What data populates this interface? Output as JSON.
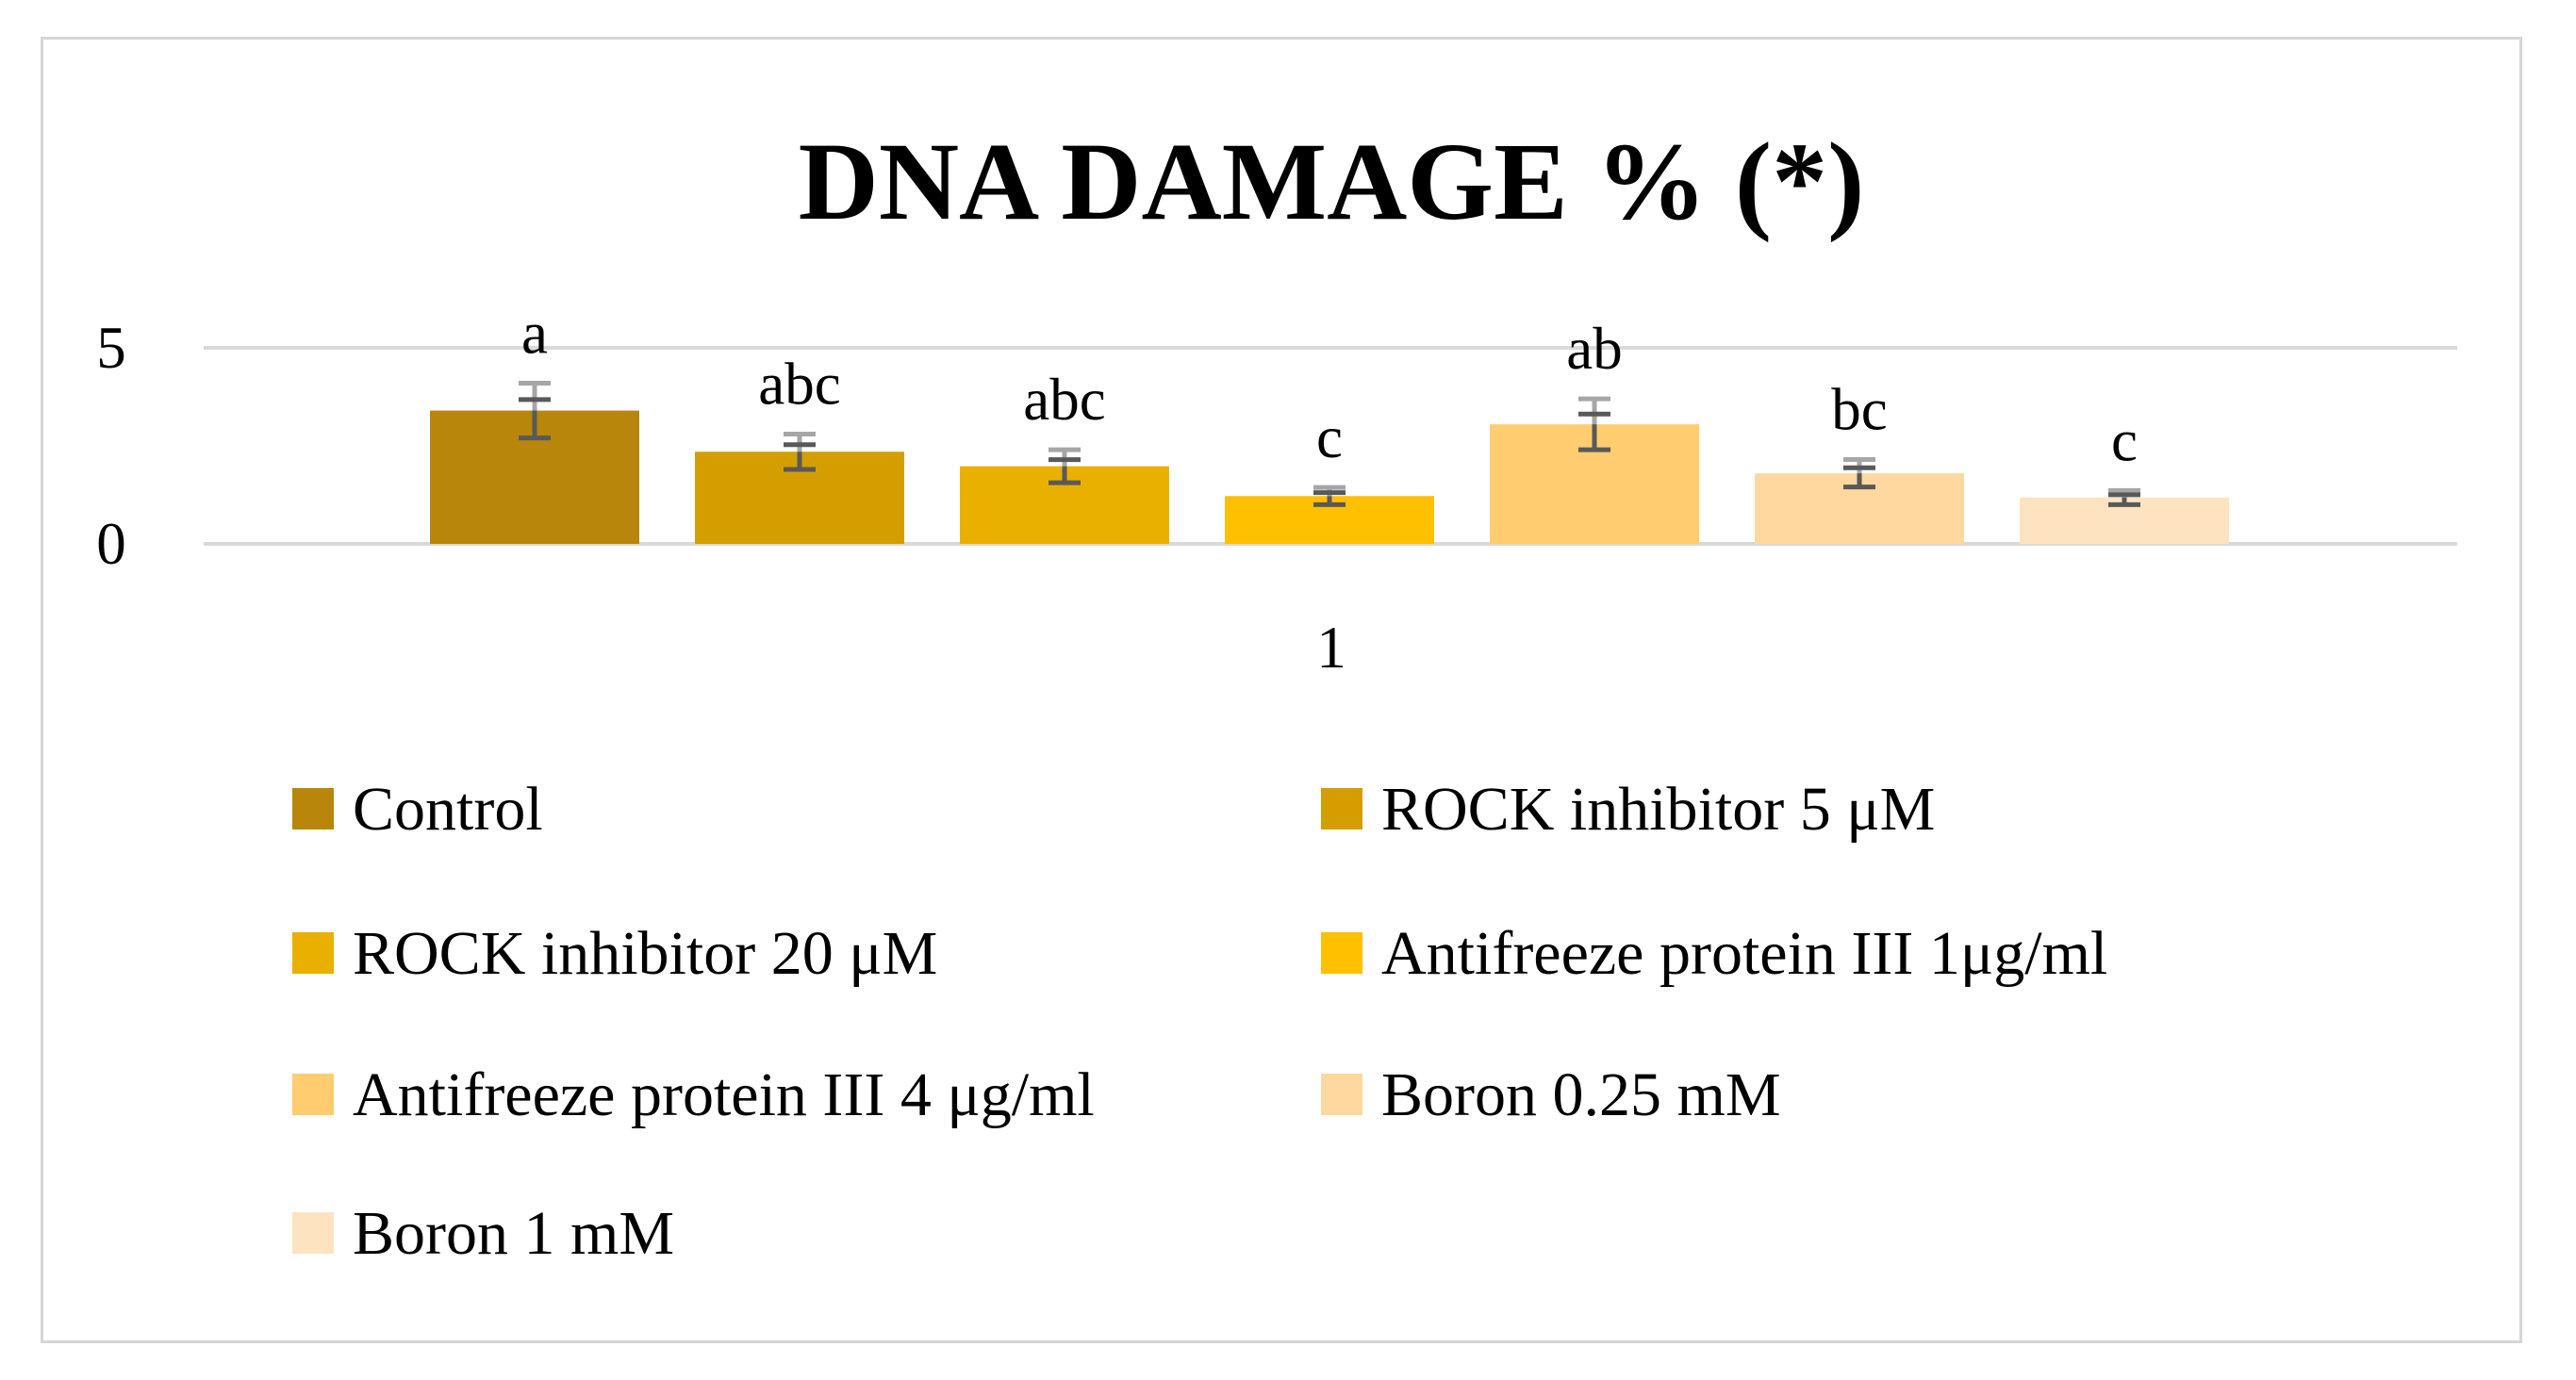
{
  "chart_data": {
    "type": "bar",
    "title": "DNA DAMAGE % (*)",
    "xlabel": "",
    "ylabel": "",
    "ylim": [
      0,
      5
    ],
    "yticks": [
      0,
      5
    ],
    "grid": true,
    "legend_position": "bottom",
    "categories": [
      "1"
    ],
    "series": [
      {
        "name": "Control",
        "values": [
          3.4
        ],
        "error": [
          0.7
        ],
        "significance": "a",
        "color": "#b8860b"
      },
      {
        "name": "ROCK inhibitor 5 μM",
        "values": [
          2.35
        ],
        "error": [
          0.45
        ],
        "significance": "abc",
        "color": "#d49e00"
      },
      {
        "name": "ROCK inhibitor 20 μM",
        "values": [
          1.98
        ],
        "error": [
          0.42
        ],
        "significance": "abc",
        "color": "#eab000"
      },
      {
        "name": "Antifreeze protein III 1μg/ml",
        "values": [
          1.22
        ],
        "error": [
          0.22
        ],
        "significance": "c",
        "color": "#ffc000"
      },
      {
        "name": "Antifreeze protein III  4 μg/ml",
        "values": [
          3.05
        ],
        "error": [
          0.65
        ],
        "significance": "ab",
        "color": "#ffcc70"
      },
      {
        "name": "Boron 0.25 mM",
        "values": [
          1.8
        ],
        "error": [
          0.35
        ],
        "significance": "bc",
        "color": "#fed89e"
      },
      {
        "name": "Boron 1 mM",
        "values": [
          1.18
        ],
        "error": [
          0.18
        ],
        "significance": "c",
        "color": "#fee3c0"
      }
    ]
  }
}
